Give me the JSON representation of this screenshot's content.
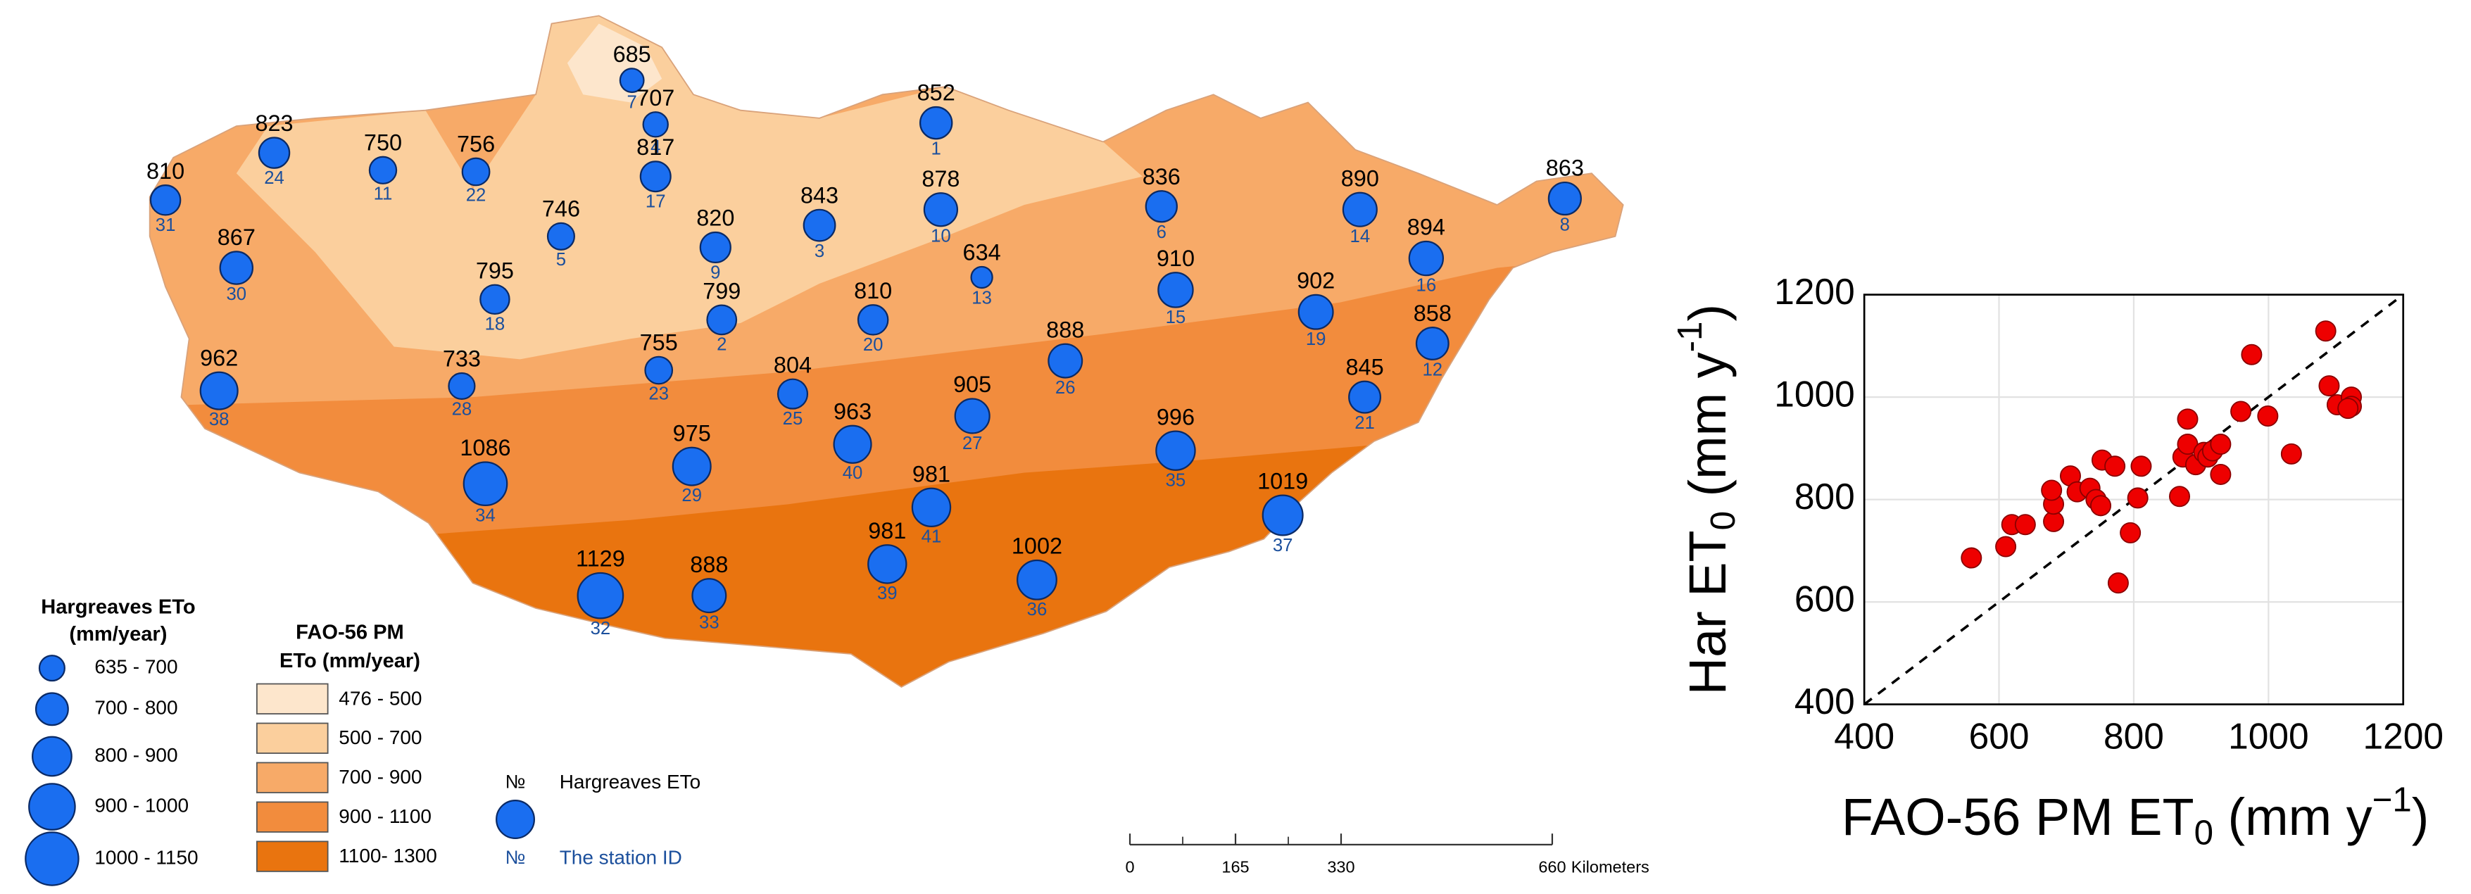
{
  "map": {
    "stations": [
      {
        "id": 7,
        "eto": 685
      },
      {
        "id": 4,
        "eto": 707
      },
      {
        "id": 1,
        "eto": 852
      },
      {
        "id": 24,
        "eto": 823
      },
      {
        "id": 11,
        "eto": 750
      },
      {
        "id": 22,
        "eto": 756
      },
      {
        "id": 17,
        "eto": 817
      },
      {
        "id": 31,
        "eto": 810
      },
      {
        "id": 5,
        "eto": 746
      },
      {
        "id": 9,
        "eto": 820
      },
      {
        "id": 3,
        "eto": 843
      },
      {
        "id": 10,
        "eto": 878
      },
      {
        "id": 6,
        "eto": 836
      },
      {
        "id": 14,
        "eto": 890
      },
      {
        "id": 8,
        "eto": 863
      },
      {
        "id": 13,
        "eto": 634
      },
      {
        "id": 30,
        "eto": 867
      },
      {
        "id": 18,
        "eto": 795
      },
      {
        "id": 2,
        "eto": 799
      },
      {
        "id": 16,
        "eto": 894
      },
      {
        "id": 15,
        "eto": 910
      },
      {
        "id": 19,
        "eto": 902
      },
      {
        "id": 12,
        "eto": 858
      },
      {
        "id": 20,
        "eto": 810
      },
      {
        "id": 26,
        "eto": 888
      },
      {
        "id": 23,
        "eto": 755
      },
      {
        "id": 28,
        "eto": 733
      },
      {
        "id": 38,
        "eto": 962
      },
      {
        "id": 25,
        "eto": 804
      },
      {
        "id": 21,
        "eto": 845
      },
      {
        "id": 27,
        "eto": 905
      },
      {
        "id": 40,
        "eto": 963
      },
      {
        "id": 29,
        "eto": 975
      },
      {
        "id": 34,
        "eto": 1086
      },
      {
        "id": 35,
        "eto": 996
      },
      {
        "id": 37,
        "eto": 1019
      },
      {
        "id": 41,
        "eto": 981
      },
      {
        "id": 39,
        "eto": 981
      },
      {
        "id": 36,
        "eto": 1002
      },
      {
        "id": 32,
        "eto": 1129
      },
      {
        "id": 33,
        "eto": 888
      }
    ],
    "station_color": "#1a6ef0",
    "hargreaves_legend": {
      "title_lines": [
        "Hargreaves ETo",
        "(mm/year)"
      ],
      "classes": [
        "635 - 700",
        "700 - 800",
        "800 - 900",
        "900 - 1000",
        "1000 - 1150"
      ]
    },
    "fao_legend": {
      "title_lines": [
        "FAO-56 PM",
        "ETo (mm/year)"
      ],
      "classes": [
        {
          "label": "476 - 500",
          "color": "#fde6cc"
        },
        {
          "label": "500 - 700",
          "color": "#fbcf9d"
        },
        {
          "label": "700 - 900",
          "color": "#f7aa68"
        },
        {
          "label": "900 - 1100",
          "color": "#f28c3d"
        },
        {
          "label": "1100- 1300",
          "color": "#e9740f"
        }
      ]
    },
    "station_legend": {
      "symbol": "№",
      "value_text": "Hargreaves ETo",
      "id_text": "The station ID"
    },
    "scale_bar": {
      "ticks": [
        0,
        165,
        330,
        660
      ],
      "unit": "Kilometers"
    }
  },
  "chart_data": {
    "type": "scatter",
    "x_label": {
      "main": "FAO-56 PM ET",
      "sub": "0",
      "unit": " (mm y",
      "sup": "−1",
      "close": ")"
    },
    "y_label": {
      "main": "Har ET",
      "sub": "0",
      "unit": " (mm y",
      "sup": "-1",
      "close": ")"
    },
    "x": [
      559,
      610,
      619,
      639,
      681,
      681,
      678,
      706,
      716,
      735,
      744,
      751,
      753,
      772,
      811,
      777,
      795,
      806,
      868,
      873,
      880,
      880,
      892,
      904,
      910,
      917,
      929,
      929,
      959,
      975,
      999,
      1034,
      1085,
      1090,
      1102,
      1123,
      1123,
      1118
    ],
    "values": [
      686,
      708,
      751,
      751,
      757,
      791,
      818,
      846,
      815,
      822,
      800,
      788,
      877,
      865,
      865,
      637,
      735,
      803,
      806,
      883,
      957,
      908,
      868,
      892,
      883,
      895,
      908,
      849,
      972,
      1083,
      963,
      889,
      1129,
      1022,
      985,
      1000,
      982,
      978
    ],
    "color": "#ee0000",
    "xlim": [
      400,
      1200
    ],
    "ylim": [
      400,
      1200
    ],
    "xticks": [
      400,
      600,
      800,
      1000,
      1200
    ],
    "yticks": [
      400,
      600,
      800,
      1000,
      1200
    ],
    "grid": true,
    "identity_line": true
  }
}
